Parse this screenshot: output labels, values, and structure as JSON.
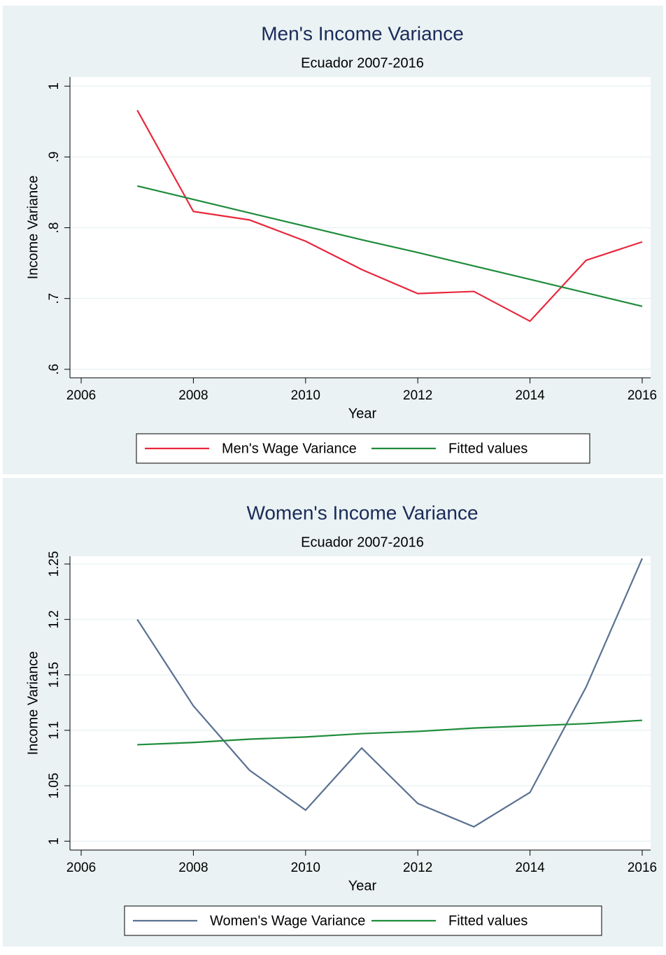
{
  "chart_data": [
    {
      "type": "line",
      "title": "Men's Income Variance",
      "subtitle": "Ecuador 2007-2016",
      "xlabel": "Year",
      "ylabel": "Income Variance",
      "x": [
        2007,
        2008,
        2009,
        2010,
        2011,
        2012,
        2013,
        2014,
        2015,
        2016
      ],
      "series": [
        {
          "name": "Men's Wage Variance",
          "color": "#e8283c",
          "values": [
            0.966,
            0.823,
            0.811,
            0.781,
            0.741,
            0.707,
            0.71,
            0.668,
            0.754,
            0.78
          ]
        },
        {
          "name": "Fitted values",
          "color": "#1e8c3a",
          "values": [
            0.859,
            0.84,
            0.821,
            0.802,
            0.783,
            0.765,
            0.746,
            0.727,
            0.708,
            0.689
          ]
        }
      ],
      "xlim": [
        2005.8,
        2016.15
      ],
      "xticks": [
        2006,
        2008,
        2010,
        2012,
        2014,
        2016
      ],
      "ylim": [
        0.588,
        1.013
      ],
      "yticks": [
        {
          "value": 0.6,
          "label": ".6"
        },
        {
          "value": 0.7,
          "label": ".7"
        },
        {
          "value": 0.8,
          "label": ".8"
        },
        {
          "value": 0.9,
          "label": ".9"
        },
        1
      ],
      "grid": true,
      "legend": "bottom"
    },
    {
      "type": "line",
      "title": "Women's Income Variance",
      "subtitle": "Ecuador 2007-2016",
      "xlabel": "Year",
      "ylabel": "Income Variance",
      "x": [
        2007,
        2008,
        2009,
        2010,
        2011,
        2012,
        2013,
        2014,
        2015,
        2016
      ],
      "series": [
        {
          "name": "Women's Wage Variance",
          "color": "#5a7191",
          "values": [
            1.2,
            1.122,
            1.064,
            1.028,
            1.084,
            1.034,
            1.013,
            1.044,
            1.139,
            1.255
          ]
        },
        {
          "name": "Fitted values",
          "color": "#1e8c3a",
          "values": [
            1.087,
            1.089,
            1.092,
            1.094,
            1.097,
            1.099,
            1.102,
            1.104,
            1.106,
            1.109
          ]
        }
      ],
      "xlim": [
        2005.8,
        2016.15
      ],
      "xticks": [
        2006,
        2008,
        2010,
        2012,
        2014,
        2016
      ],
      "ylim": [
        0.992,
        1.257
      ],
      "yticks": [
        1,
        1.05,
        1.1,
        1.15,
        1.2,
        1.25
      ],
      "grid": true,
      "legend": "bottom"
    }
  ]
}
